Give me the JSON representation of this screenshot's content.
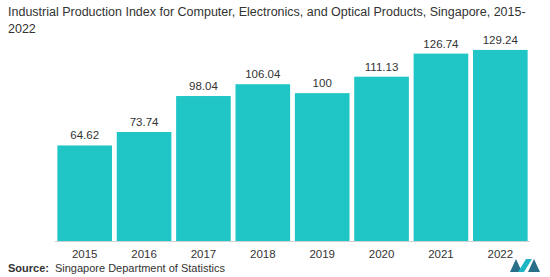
{
  "chart_data": {
    "type": "bar",
    "title": "Industrial Production Index for Computer, Electronics, and Optical Products, Singapore, 2015-2022",
    "categories": [
      "2015",
      "2016",
      "2017",
      "2018",
      "2019",
      "2020",
      "2021",
      "2022"
    ],
    "values": [
      64.62,
      73.74,
      98.04,
      106.04,
      100,
      111.13,
      126.74,
      129.24
    ],
    "color": "#20c5c6",
    "ylim": [
      0,
      140
    ],
    "grid": false,
    "data_labels": true,
    "tick_labels": "x",
    "source_label": "Source:",
    "source": "Singapore Department of Statistics"
  }
}
